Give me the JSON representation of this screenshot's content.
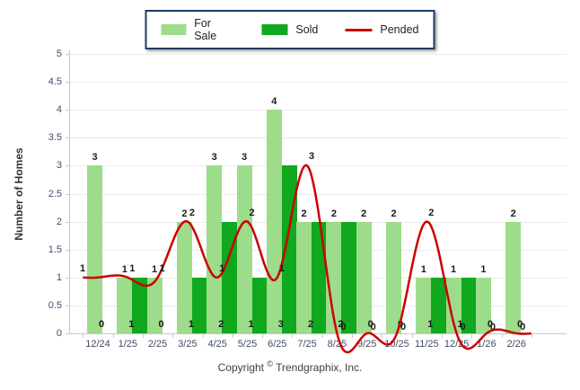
{
  "chart_data": {
    "type": "bar",
    "title": "",
    "categories": [
      "12/24",
      "1/25",
      "2/25",
      "3/25",
      "4/25",
      "5/25",
      "6/25",
      "7/25",
      "8/25",
      "9/25",
      "10/25",
      "11/25",
      "12/25",
      "1/26",
      "2/26"
    ],
    "series": [
      {
        "name": "For Sale",
        "type": "bar",
        "color": "#9ddc8a",
        "values": [
          3,
          1,
          1,
          2,
          3,
          3,
          4,
          2,
          2,
          2,
          2,
          1,
          1,
          1,
          2
        ]
      },
      {
        "name": "Sold",
        "type": "bar",
        "color": "#0fa81e",
        "values": [
          0,
          1,
          0,
          1,
          2,
          1,
          3,
          2,
          2,
          0,
          0,
          1,
          1,
          0,
          0
        ]
      },
      {
        "name": "Pended",
        "type": "line",
        "color": "#cc0000",
        "values": [
          1,
          1,
          1,
          2,
          1,
          2,
          1,
          3,
          0,
          0,
          0,
          2,
          0,
          0,
          0
        ]
      }
    ],
    "xlabel": "",
    "ylabel": "Number of Homes",
    "ylim": [
      0,
      5
    ],
    "ytick_step": 0.5,
    "ytick_labels": [
      "0",
      "0.5",
      "1",
      "1.5",
      "2",
      "2.5",
      "3",
      "3.5",
      "4",
      "4.5",
      "5"
    ],
    "grid": true,
    "legend_position": "top-center",
    "value_labels_shown": true
  },
  "colors": {
    "for_sale": "#9ddc8a",
    "sold": "#0fa81e",
    "pended": "#cc0000",
    "grid": "#ebebeb",
    "axis_line": "#c9c9c9",
    "axis_text": "#3f4d66",
    "value_label_text": "#1a1a1a",
    "legend_border": "#1b3d63"
  },
  "copyright": {
    "prefix": "Copyright",
    "symbol": "©",
    "suffix": "Trendgraphix, Inc."
  }
}
